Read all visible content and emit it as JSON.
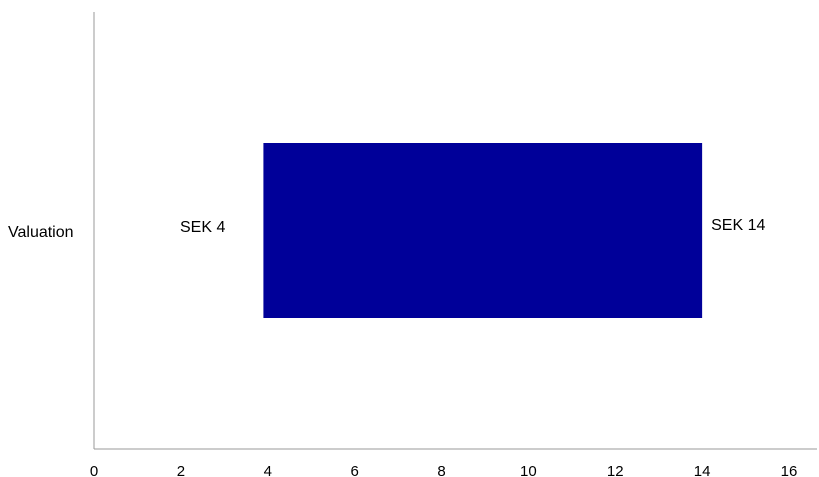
{
  "chart_data": {
    "type": "bar",
    "orientation": "horizontal",
    "categories": [
      "Valuation"
    ],
    "ranges": [
      {
        "low": 3.9,
        "high": 14.0
      }
    ],
    "value_labels": {
      "low": "SEK 4",
      "high": "SEK 14"
    },
    "xlim": [
      0,
      16
    ],
    "xticks": [
      0,
      2,
      4,
      6,
      8,
      10,
      12,
      14,
      16
    ],
    "grid": false,
    "legend": "none",
    "title": "",
    "xlabel": "",
    "ylabel": ""
  },
  "colors": {
    "bar": "#000099",
    "axis": "#999999"
  }
}
